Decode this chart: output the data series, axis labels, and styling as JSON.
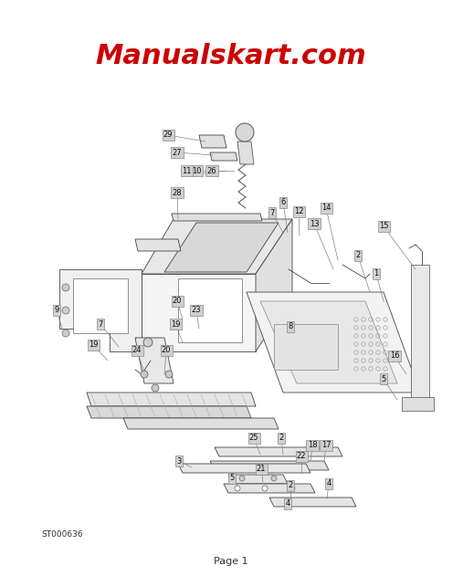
{
  "title": "Manualskart.com",
  "title_color": "#cc0000",
  "title_fontsize": 22,
  "title_fontstyle": "italic",
  "title_fontweight": "bold",
  "background_color": "#ffffff",
  "page_label": "Page 1",
  "diagram_code": "ST000636",
  "fig_width": 5.07,
  "fig_height": 6.31,
  "dpi": 100,
  "label_box_color": "#d0d0d0",
  "label_fontsize": 6.0,
  "line_color": "#444444",
  "line_width": 0.6
}
